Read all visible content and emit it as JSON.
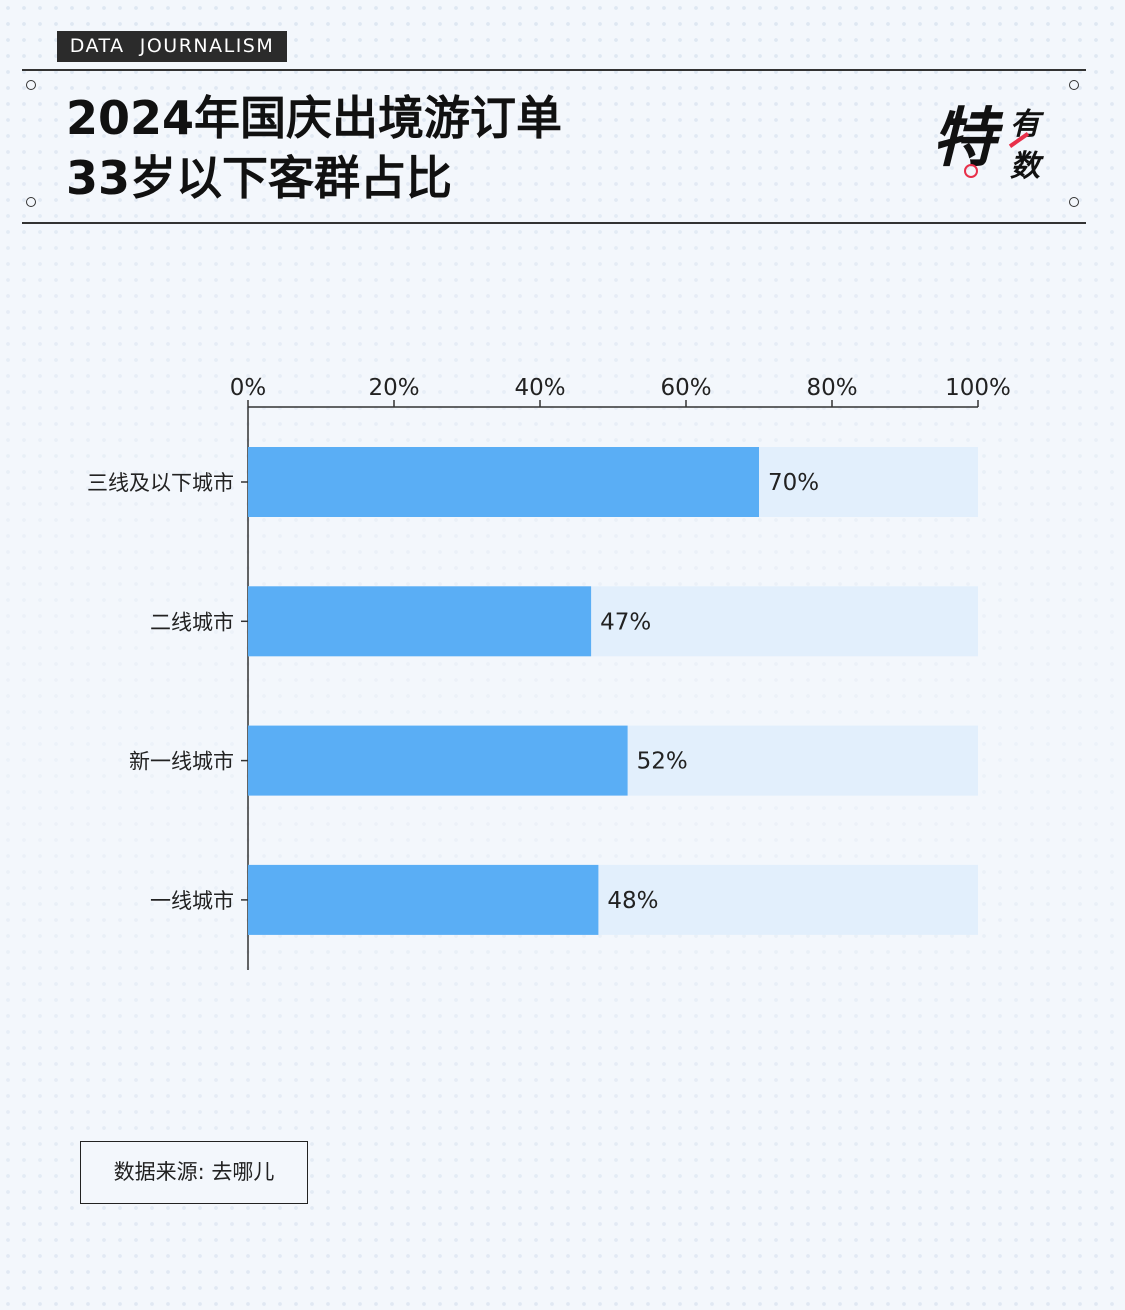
{
  "header": {
    "badge": "DATA  JOURNALISM",
    "title_line1": "2024年国庆出境游订单",
    "title_line2": "33岁以下客群占比",
    "brand_main": "特",
    "brand_top": "有",
    "brand_bottom": "数"
  },
  "colors": {
    "bar": "#5aaef5",
    "track": "#e2effc",
    "accent": "#e8304a"
  },
  "chart_data": {
    "type": "bar",
    "orientation": "horizontal",
    "categories": [
      "三线及以下城市",
      "二线城市",
      "新一线城市",
      "一线城市"
    ],
    "values": [
      70,
      47,
      52,
      48
    ],
    "data_labels": [
      "70%",
      "47%",
      "52%",
      "48%"
    ],
    "xlim": [
      0,
      100
    ],
    "x_ticks": [
      "0%",
      "20%",
      "40%",
      "60%",
      "80%",
      "100%"
    ],
    "x_axis_position": "top",
    "grid": false,
    "background_track": true
  },
  "footer": {
    "source": "数据来源: 去哪儿"
  }
}
